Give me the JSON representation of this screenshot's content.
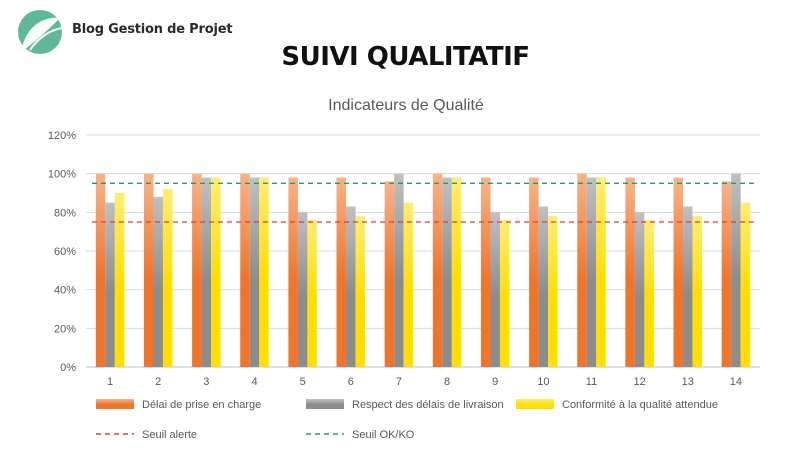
{
  "brand": {
    "name": "Blog Gestion de Projet",
    "logo_icon": "leaf-logo-icon",
    "logo_color": "#5fb89a"
  },
  "headline": "SUIVI QUALITATIF",
  "chart_data": {
    "type": "bar",
    "title": "Indicateurs de Qualité",
    "xlabel": "",
    "ylabel": "",
    "categories": [
      "1",
      "2",
      "3",
      "4",
      "5",
      "6",
      "7",
      "8",
      "9",
      "10",
      "11",
      "12",
      "13",
      "14"
    ],
    "ylim": [
      0,
      1.2
    ],
    "yticks": [
      "0%",
      "20%",
      "40%",
      "60%",
      "80%",
      "100%",
      "120%"
    ],
    "grid": true,
    "legend_position": "bottom",
    "series": [
      {
        "name": "Délai de prise en charge",
        "color": "#f0742a",
        "values": [
          1.0,
          1.0,
          1.0,
          1.0,
          0.98,
          0.98,
          0.96,
          1.0,
          0.98,
          0.98,
          1.0,
          0.98,
          0.98,
          0.96
        ]
      },
      {
        "name": "Respect des délais de livraison",
        "color": "#8c8c8c",
        "values": [
          0.85,
          0.88,
          0.98,
          0.98,
          0.8,
          0.83,
          1.0,
          0.98,
          0.8,
          0.83,
          0.98,
          0.8,
          0.83,
          1.0
        ]
      },
      {
        "name": "Conformité à la qualité attendue",
        "color": "#ffde00",
        "values": [
          0.9,
          0.92,
          0.98,
          0.98,
          0.76,
          0.78,
          0.85,
          0.98,
          0.76,
          0.78,
          0.98,
          0.76,
          0.78,
          0.85
        ]
      }
    ],
    "thresholds": [
      {
        "name": "Seuil alerte",
        "value": 0.75,
        "color": "#e53935"
      },
      {
        "name": "Seuil OK/KO",
        "value": 0.95,
        "color": "#22a05a"
      }
    ]
  }
}
